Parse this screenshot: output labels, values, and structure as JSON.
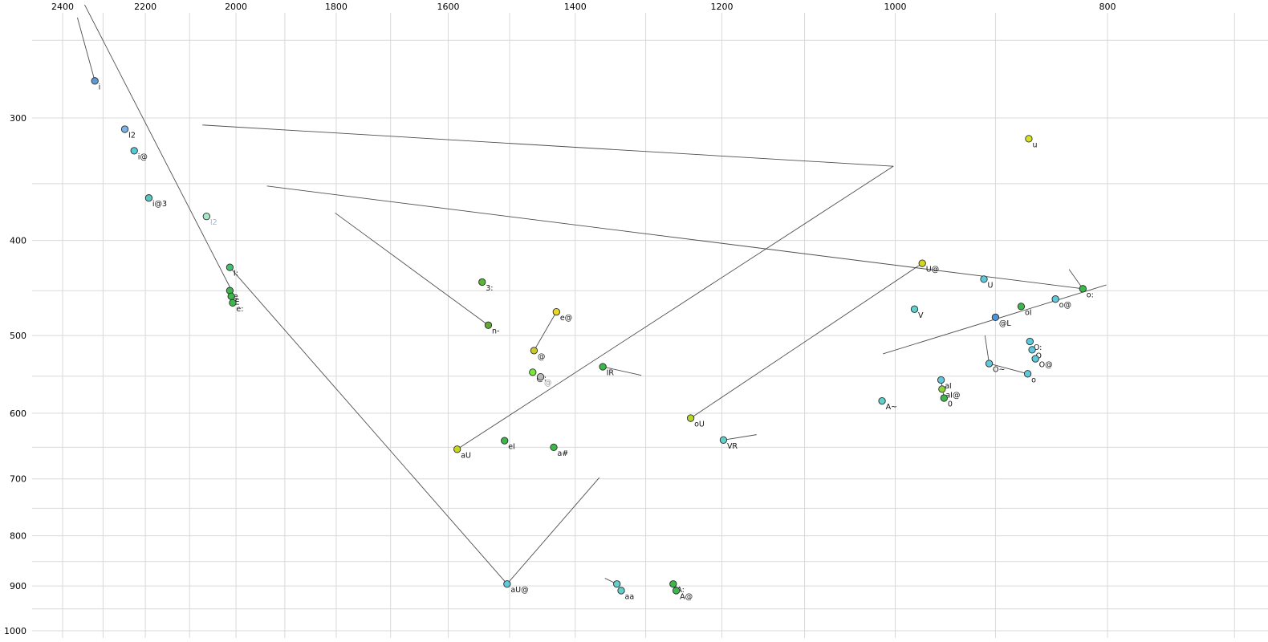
{
  "chart_data": {
    "type": "scatter",
    "title": "",
    "xlabel": "",
    "ylabel": "",
    "x_axis": {
      "scale": "log",
      "reversed": true,
      "tick_labels": [
        "2400",
        "2200",
        "2000",
        "1800",
        "1600",
        "1400",
        "1200",
        "1000",
        "800"
      ],
      "tick_values": [
        2400,
        2200,
        2000,
        1800,
        1600,
        1400,
        1200,
        1000,
        800
      ],
      "grid_values": [
        2400,
        2300,
        2200,
        2100,
        2000,
        1900,
        1800,
        1700,
        1600,
        1500,
        1400,
        1300,
        1200,
        1100,
        1000,
        900,
        800,
        700
      ]
    },
    "y_axis": {
      "scale": "log",
      "reversed": false,
      "tick_labels": [
        "300",
        "400",
        "500",
        "600",
        "700",
        "800",
        "900",
        "1000"
      ],
      "tick_values": [
        300,
        400,
        500,
        600,
        700,
        800,
        900,
        1000
      ],
      "grid_values": [
        250,
        300,
        350,
        400,
        450,
        500,
        550,
        600,
        650,
        700,
        750,
        800,
        850,
        900,
        950,
        1000
      ]
    },
    "x_map": {
      "v1": 2400,
      "px1": 78,
      "v2": 800,
      "px2": 1380
    },
    "y_map": {
      "v1": 300,
      "px1": 147,
      "v2": 1000,
      "px2": 786
    },
    "points": [
      {
        "label": "i",
        "f2": 2320,
        "f1": 275,
        "color": "#5b9bd5"
      },
      {
        "label": "I2",
        "f2": 2248,
        "f1": 308,
        "color": "#7fb2e5"
      },
      {
        "label": "i@",
        "f2": 2226,
        "f1": 324,
        "color": "#59c7d6"
      },
      {
        "label": "i@3",
        "f2": 2192,
        "f1": 362,
        "color": "#59c7c0"
      },
      {
        "label": "I2",
        "f2": 2063,
        "f1": 378,
        "color": "#a8e8c8",
        "label_color": "#9fb4e6"
      },
      {
        "label": "I:",
        "f2": 2013,
        "f1": 426,
        "color": "#3fbf6f"
      },
      {
        "label": "e",
        "f2": 2013,
        "f1": 450,
        "color": "#3cb84a"
      },
      {
        "label": "E",
        "f2": 2010,
        "f1": 456,
        "color": "#3cb84a"
      },
      {
        "label": "e:",
        "f2": 2007,
        "f1": 463,
        "color": "#3cb84a"
      },
      {
        "label": "3:",
        "f2": 1544,
        "f1": 441,
        "color": "#55b835"
      },
      {
        "label": "e@",
        "f2": 1428,
        "f1": 473,
        "color": "#e8d822"
      },
      {
        "label": "n-",
        "f2": 1534,
        "f1": 488,
        "color": "#63a832"
      },
      {
        "label": "@",
        "f2": 1462,
        "f1": 518,
        "color": "#c8c832"
      },
      {
        "label": "@:",
        "f2": 1464,
        "f1": 545,
        "color": "#7ae53c"
      },
      {
        "label": "@",
        "f2": 1452,
        "f1": 551,
        "color": "#b9b9b9",
        "label_color": "#9a9a9a"
      },
      {
        "label": "IR",
        "f2": 1360,
        "f1": 538,
        "color": "#3cb84a"
      },
      {
        "label": "U@",
        "f2": 972,
        "f1": 422,
        "color": "#d6d61f"
      },
      {
        "label": "U",
        "f2": 911,
        "f1": 438,
        "color": "#5fc9dc"
      },
      {
        "label": "u",
        "f2": 869,
        "f1": 315,
        "color": "#d8e01f"
      },
      {
        "label": "V",
        "f2": 980,
        "f1": 470,
        "color": "#62cfc9"
      },
      {
        "label": "o:",
        "f2": 821,
        "f1": 448,
        "color": "#3cb84a"
      },
      {
        "label": "o@",
        "f2": 845,
        "f1": 459,
        "color": "#5fc9dc"
      },
      {
        "label": "oI",
        "f2": 876,
        "f1": 467,
        "color": "#3cb84a"
      },
      {
        "label": "@L",
        "f2": 900,
        "f1": 479,
        "color": "#4b94d8"
      },
      {
        "label": "O:",
        "f2": 868,
        "f1": 507,
        "color": "#5fc9dc"
      },
      {
        "label": "O",
        "f2": 866,
        "f1": 517,
        "color": "#5fc9dc"
      },
      {
        "label": "O@",
        "f2": 863,
        "f1": 528,
        "color": "#5fc9dc"
      },
      {
        "label": "O~",
        "f2": 906,
        "f1": 534,
        "color": "#5fc9dc"
      },
      {
        "label": "o",
        "f2": 870,
        "f1": 547,
        "color": "#5fc9dc"
      },
      {
        "label": "aI",
        "f2": 953,
        "f1": 555,
        "color": "#5fc9dc"
      },
      {
        "label": "aI@",
        "f2": 952,
        "f1": 567,
        "color": "#8ed23c"
      },
      {
        "label": "0",
        "f2": 950,
        "f1": 579,
        "color": "#3cb84a"
      },
      {
        "label": "A~",
        "f2": 1014,
        "f1": 583,
        "color": "#62cfc9"
      },
      {
        "label": "oU",
        "f2": 1240,
        "f1": 607,
        "color": "#b4d625"
      },
      {
        "label": "VR",
        "f2": 1198,
        "f1": 639,
        "color": "#62cfc9"
      },
      {
        "label": "eI",
        "f2": 1508,
        "f1": 640,
        "color": "#3cb84a"
      },
      {
        "label": "aU",
        "f2": 1585,
        "f1": 653,
        "color": "#c6d61f"
      },
      {
        "label": "a#",
        "f2": 1432,
        "f1": 650,
        "color": "#3cb84a"
      },
      {
        "label": "aU@",
        "f2": 1504,
        "f1": 896,
        "color": "#5fc9dc"
      },
      {
        "label": "a",
        "f2": 1340,
        "f1": 896,
        "color": "#62cfc9"
      },
      {
        "label": "aa",
        "f2": 1334,
        "f1": 910,
        "color": "#62cfc9"
      },
      {
        "label": "A:",
        "f2": 1263,
        "f1": 896,
        "color": "#3cb84a"
      },
      {
        "label": "A@",
        "f2": 1259,
        "f1": 910,
        "color": "#3cb84a"
      }
    ],
    "segments": [
      {
        "from": [
          2363,
          237
        ],
        "to": [
          2320,
          275
        ]
      },
      {
        "from": [
          2345,
          230
        ],
        "to": [
          2008,
          451
        ]
      },
      {
        "from": [
          2072,
          305
        ],
        "to": [
          1002,
          336
        ]
      },
      {
        "from": [
          1002,
          336
        ],
        "to": [
          1585,
          653
        ]
      },
      {
        "from": [
          1936,
          352
        ],
        "to": [
          821,
          448
        ]
      },
      {
        "from": [
          1802,
          375
        ],
        "to": [
          1534,
          488
        ]
      },
      {
        "from": [
          2013,
          426
        ],
        "to": [
          1504,
          896
        ]
      },
      {
        "from": [
          1504,
          896
        ],
        "to": [
          1365,
          698
        ]
      },
      {
        "from": [
          1240,
          607
        ],
        "to": [
          972,
          422
        ]
      },
      {
        "from": [
          1428,
          473
        ],
        "to": [
          1462,
          518
        ]
      },
      {
        "from": [
          1198,
          639
        ],
        "to": [
          1157,
          631
        ]
      },
      {
        "from": [
          1357,
          884
        ],
        "to": [
          1340,
          896
        ]
      },
      {
        "from": [
          910,
          500
        ],
        "to": [
          906,
          534
        ]
      },
      {
        "from": [
          906,
          534
        ],
        "to": [
          870,
          547
        ]
      },
      {
        "from": [
          1013,
          522
        ],
        "to": [
          801,
          444
        ]
      },
      {
        "from": [
          833,
          428
        ],
        "to": [
          821,
          448
        ]
      },
      {
        "from": [
          953,
          555
        ],
        "to": [
          950,
          579
        ]
      },
      {
        "from": [
          1263,
          890
        ],
        "to": [
          1256,
          914
        ]
      },
      {
        "from": [
          1360,
          538
        ],
        "to": [
          1306,
          549
        ]
      }
    ],
    "legend": null,
    "grid": true
  },
  "colors": {
    "grid": "#d9d9d9",
    "trajectory": "#3c3c3c",
    "tick_text": "#000000",
    "point_label": "#111111",
    "point_outline": "#2b2b2b",
    "background": "#ffffff"
  }
}
